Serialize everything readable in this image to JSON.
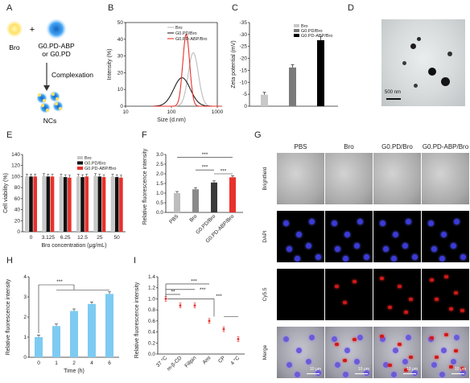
{
  "panel_letters": [
    "A",
    "B",
    "C",
    "D",
    "E",
    "F",
    "G",
    "H",
    "I"
  ],
  "colors": {
    "bro": "#c8c8c8",
    "g0pd": "#7a7a7a",
    "abp": "#000000",
    "red": "#e8312c",
    "blue": "#7ecbf2",
    "dls_bro": "#bdbdbd",
    "dls_g0": "#222222",
    "dls_abp": "#e8312c"
  },
  "scheme": {
    "bro": "Bro",
    "plus": "+",
    "g0": "G0.PD-ABP",
    "or_g0": "or G0.PD",
    "step": "Complexation",
    "ncs": "NCs"
  },
  "tem": {
    "scalebar": "500 nm"
  },
  "grid": {
    "columns": [
      "PBS",
      "Bro",
      "G0.PD/Bro",
      "G0.PD-ABP/Bro"
    ],
    "rows": [
      "Brightfield",
      "DAPI",
      "Cy5.5",
      "Merge"
    ],
    "scalebar": "10 μm"
  },
  "chart_data": [
    {
      "panel": "B",
      "type": "line",
      "xlabel": "Size (d.nm)",
      "ylabel": "Intensity (%)",
      "xscale": "log",
      "xlim": [
        10,
        1000
      ],
      "ylim": [
        0,
        50
      ],
      "x_ticks": [
        "10",
        "100",
        "1000"
      ],
      "y_ticks": [
        "0",
        "10",
        "20",
        "30",
        "40",
        "50"
      ],
      "legend": [
        "Bro",
        "G0.PD/Bro",
        "G0.PD-ABP/Bro"
      ],
      "legend_position": "top-right",
      "series": [
        {
          "name": "Bro",
          "peak_x": 300,
          "peak_y": 32,
          "width": 0.11
        },
        {
          "name": "G0.PD/Bro",
          "peak_x": 170,
          "peak_y": 17,
          "width": 0.18
        },
        {
          "name": "G0.PD-ABP/Bro",
          "peak_x": 210,
          "peak_y": 43,
          "width": 0.075
        }
      ]
    },
    {
      "panel": "C",
      "type": "bar",
      "ylabel": "Zeta potential (mV)",
      "ylim": [
        0,
        -35
      ],
      "y_ticks": [
        "0",
        "-5",
        "-10",
        "-15",
        "-20",
        "-25",
        "-30",
        "-35"
      ],
      "legend": [
        "Bro",
        "G0.PD/Bro",
        "G0.PD-ABP/Bro"
      ],
      "legend_position": "top-left",
      "series": [
        {
          "name": "Bro",
          "value": -4.8,
          "error": 1.0
        },
        {
          "name": "G0.PD/Bro",
          "value": -16.2,
          "error": 1.2
        },
        {
          "name": "G0.PD-ABP/Bro",
          "value": -27.6,
          "error": 1.5
        }
      ]
    },
    {
      "panel": "E",
      "type": "bar",
      "xlabel": "Bro concentration (μg/mL)",
      "ylabel": "Cell viability (%)",
      "ylim": [
        0,
        140
      ],
      "categories": [
        "0",
        "3.125",
        "6.25",
        "12.5",
        "25",
        "50"
      ],
      "y_ticks": [
        "0",
        "20",
        "40",
        "60",
        "80",
        "100",
        "120",
        "140"
      ],
      "legend_position": "top-right",
      "series": [
        {
          "name": "Bro",
          "values": [
            100,
            101,
            100,
            100,
            101,
            100
          ]
        },
        {
          "name": "G0.PD/Bro",
          "values": [
            100,
            100,
            99,
            99,
            100,
            99
          ]
        },
        {
          "name": "G0.PD-ABP/Bro",
          "values": [
            100,
            100,
            98,
            100,
            99,
            98
          ]
        }
      ]
    },
    {
      "panel": "F",
      "type": "bar",
      "ylabel": "Relative fluorescence intensity",
      "ylim": [
        0,
        3
      ],
      "y_ticks": [
        "0.0",
        "0.5",
        "1.0",
        "1.5",
        "2.0",
        "2.5",
        "3.0"
      ],
      "categories": [
        "PBS",
        "Bro",
        "G0.PD/Bro",
        "G0.PD-ABP/Bro"
      ],
      "values": [
        1.0,
        1.2,
        1.55,
        1.82
      ],
      "significance": [
        {
          "from": 0,
          "to": 3,
          "label": "***"
        },
        {
          "from": 1,
          "to": 2,
          "label": "***"
        },
        {
          "from": 2,
          "to": 3,
          "label": "***"
        }
      ]
    },
    {
      "panel": "H",
      "type": "bar",
      "xlabel": "Time (h)",
      "ylabel": "Relative fluorescence intensity",
      "ylim": [
        0,
        4
      ],
      "y_ticks": [
        "0",
        "1",
        "2",
        "3",
        "4"
      ],
      "categories": [
        "0",
        "1",
        "2",
        "4",
        "6"
      ],
      "values": [
        1.0,
        1.55,
        2.3,
        2.65,
        3.15
      ],
      "significance": [
        {
          "from": 0,
          "to_group": [
            1,
            2,
            3,
            4
          ],
          "label": "***"
        }
      ]
    },
    {
      "panel": "I",
      "type": "scatter",
      "ylabel": "Relative fluorescence intensity",
      "ylim": [
        0,
        1.4
      ],
      "y_ticks": [
        "0.0",
        "0.2",
        "0.4",
        "0.6",
        "0.8",
        "1.0",
        "1.2",
        "1.4"
      ],
      "categories": [
        "37 °C",
        "m-β-CD",
        "Filipin",
        "Ami",
        "CP",
        "4 °C"
      ],
      "values": [
        1.0,
        0.88,
        0.88,
        0.6,
        0.45,
        0.27
      ],
      "significance": [
        {
          "from": 0,
          "to": 1,
          "label": "**"
        },
        {
          "from": 0,
          "to": 2,
          "label": "***"
        },
        {
          "from": 0,
          "to": 3,
          "label": "***"
        },
        {
          "from": 0,
          "to_group": [
            4,
            5
          ],
          "label": "***"
        }
      ]
    }
  ]
}
